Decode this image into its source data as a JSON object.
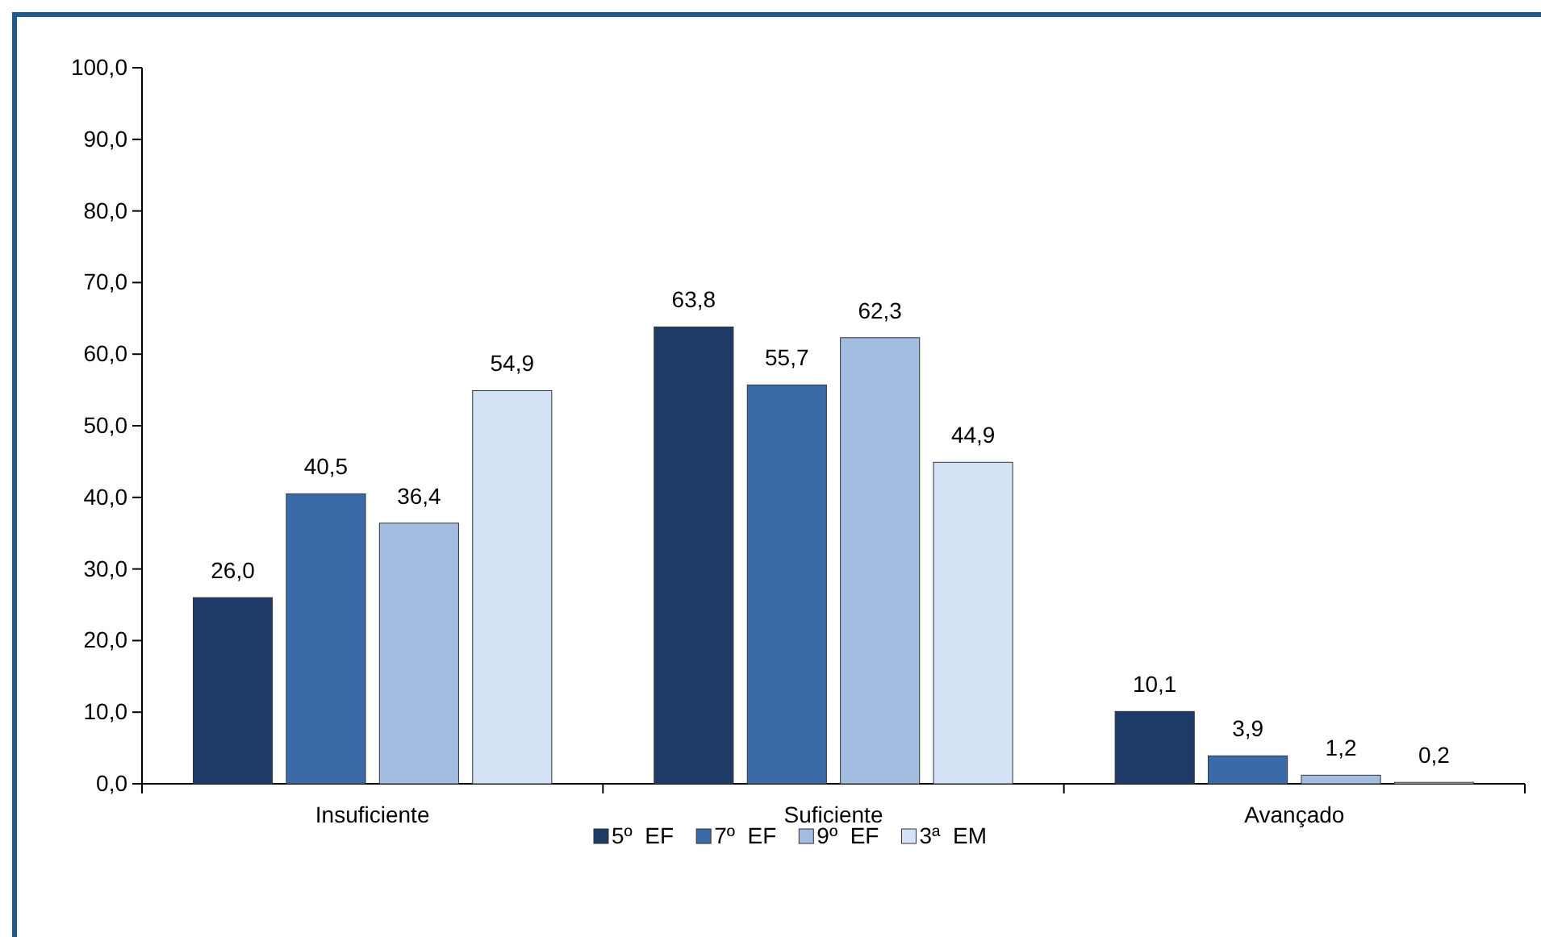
{
  "chart_data": {
    "type": "bar",
    "categories": [
      "Insuficiente",
      "Suficiente",
      "Avançado"
    ],
    "series": [
      {
        "name": "5º  EF",
        "color": "#1e3a66",
        "values": [
          26.0,
          63.8,
          10.1
        ],
        "value_labels": [
          "26,0",
          "63,8",
          "10,1"
        ]
      },
      {
        "name": "7º  EF",
        "color": "#3a6aa8",
        "values": [
          40.5,
          55.7,
          3.9
        ],
        "value_labels": [
          "40,5",
          "55,7",
          "3,9"
        ]
      },
      {
        "name": "9º  EF",
        "color": "#a3bde2",
        "values": [
          36.4,
          62.3,
          1.2
        ],
        "value_labels": [
          "36,4",
          "62,3",
          "1,2"
        ]
      },
      {
        "name": "3ª  EM",
        "color": "#d3e2f4",
        "values": [
          54.9,
          44.9,
          0.2
        ],
        "value_labels": [
          "54,9",
          "44,9",
          "0,2"
        ]
      }
    ],
    "ylim": [
      0,
      100
    ],
    "yticks": [
      {
        "value": 0,
        "label": "0,0"
      },
      {
        "value": 10,
        "label": "10,0"
      },
      {
        "value": 20,
        "label": "20,0"
      },
      {
        "value": 30,
        "label": "30,0"
      },
      {
        "value": 40,
        "label": "40,0"
      },
      {
        "value": 50,
        "label": "50,0"
      },
      {
        "value": 60,
        "label": "60,0"
      },
      {
        "value": 70,
        "label": "70,0"
      },
      {
        "value": 80,
        "label": "80,0"
      },
      {
        "value": 90,
        "label": "90,0"
      },
      {
        "value": 100,
        "label": "100,0"
      }
    ],
    "grid": false,
    "legend": "bottom"
  }
}
